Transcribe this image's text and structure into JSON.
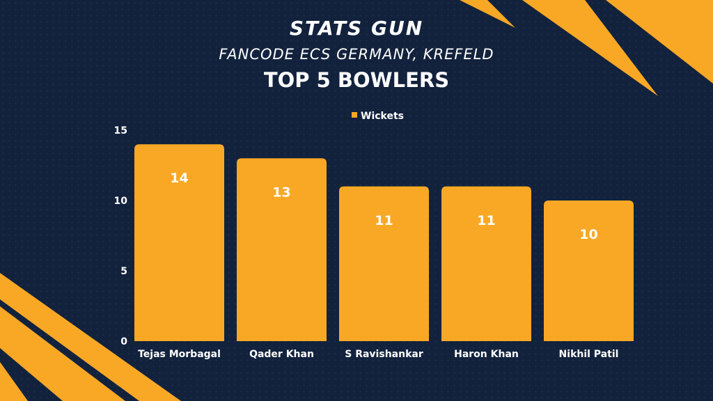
{
  "header": {
    "title": "STATS GUN",
    "subtitle": "FANCODE ECS GERMANY, KREFELD",
    "heading": "TOP 5 BOWLERS"
  },
  "colors": {
    "background": "#12223d",
    "bar": "#f9a825",
    "text": "#ffffff"
  },
  "chart_data": {
    "type": "bar",
    "categories": [
      "Tejas Morbagal",
      "Qader Khan",
      "S Ravishankar",
      "Haron Khan",
      "Nikhil Patil"
    ],
    "series": [
      {
        "name": "Wickets",
        "values": [
          14,
          13,
          11,
          11,
          10
        ]
      }
    ],
    "ylim": [
      0,
      15
    ],
    "yticks": [
      0,
      5,
      10,
      15
    ],
    "legend": "top-center",
    "data_labels": true,
    "grid": false
  }
}
